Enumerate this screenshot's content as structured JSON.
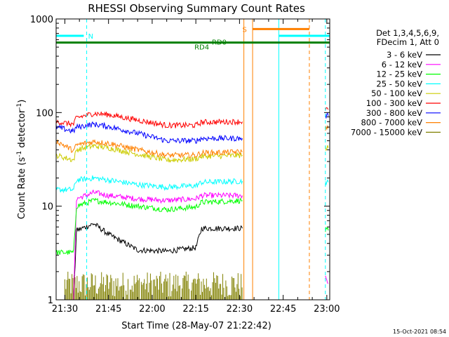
{
  "chart_data": {
    "type": "line",
    "title": "RHESSI Observing Summary Count Rates",
    "xlabel": "Start Time (28-May-07 21:22:42)",
    "ylabel_main": "Count Rate (s",
    "ylabel_sup1": "-1",
    "ylabel_mid": " detector",
    "ylabel_sup2": "-1",
    "ylabel_end": ")",
    "yscale": "log",
    "ylim": [
      1,
      1000
    ],
    "x_unit": "minutes after 21:00",
    "xlim": [
      27,
      121
    ],
    "x_ticks": [
      {
        "x": 30,
        "label": "21:30"
      },
      {
        "x": 45,
        "label": "21:45"
      },
      {
        "x": 60,
        "label": "22:00"
      },
      {
        "x": 75,
        "label": "22:15"
      },
      {
        "x": 90,
        "label": "22:30"
      },
      {
        "x": 105,
        "label": "22:45"
      },
      {
        "x": 120,
        "label": "23:00"
      }
    ],
    "y_ticks": [
      {
        "y": 1,
        "label": "1"
      },
      {
        "y": 10,
        "label": "10"
      },
      {
        "y": 100,
        "label": "100"
      },
      {
        "y": 1000,
        "label": "1000"
      }
    ],
    "legend_header": [
      "Det 1,3,4,5,6,9,",
      "FDecim 1, Att 0"
    ],
    "series": [
      {
        "name": "3 - 6 keV",
        "color": "#000000",
        "segments": [
          [
            [
              31,
              1.0
            ],
            [
              33,
              1.0
            ],
            [
              34,
              5.5
            ],
            [
              40,
              6.5
            ],
            [
              45,
              5.0
            ],
            [
              55,
              3.4
            ],
            [
              65,
              3.3
            ],
            [
              75,
              3.6
            ],
            [
              77,
              5.8
            ],
            [
              91,
              5.8
            ]
          ]
        ]
      },
      {
        "name": "6 - 12 keV",
        "color": "#ff00ff",
        "segments": [
          [
            [
              28,
              1.0
            ],
            [
              33,
              1.0
            ],
            [
              34,
              12
            ],
            [
              40,
              14
            ],
            [
              45,
              13
            ],
            [
              55,
              12
            ],
            [
              65,
              11.5
            ],
            [
              75,
              12
            ],
            [
              77,
              13
            ],
            [
              91,
              13
            ]
          ],
          [
            [
              119.5,
              1.8
            ],
            [
              120.5,
              1.5
            ]
          ]
        ]
      },
      {
        "name": "12 - 25 keV",
        "color": "#00ff00",
        "segments": [
          [
            [
              27,
              3.2
            ],
            [
              33,
              3.2
            ],
            [
              34,
              10
            ],
            [
              40,
              11.5
            ],
            [
              45,
              11
            ],
            [
              55,
              10
            ],
            [
              65,
              9.2
            ],
            [
              75,
              9.8
            ],
            [
              77,
              11
            ],
            [
              91,
              11.5
            ]
          ],
          [
            [
              119.5,
              5.5
            ],
            [
              120.5,
              5.5
            ]
          ]
        ]
      },
      {
        "name": "25 - 50 keV",
        "color": "#00ffff",
        "segments": [
          [
            [
              27,
              15
            ],
            [
              33,
              15
            ],
            [
              34,
              19
            ],
            [
              40,
              20
            ],
            [
              45,
              19
            ],
            [
              55,
              17
            ],
            [
              65,
              16
            ],
            [
              75,
              16.5
            ],
            [
              77,
              18
            ],
            [
              91,
              18.5
            ]
          ],
          [
            [
              119.5,
              18
            ],
            [
              120.5,
              18
            ]
          ]
        ]
      },
      {
        "name": "50 - 100 keV",
        "color": "#cccc00",
        "segments": [
          [
            [
              27,
              35
            ],
            [
              33,
              31
            ],
            [
              34,
              40
            ],
            [
              40,
              44
            ],
            [
              45,
              42
            ],
            [
              55,
              36
            ],
            [
              65,
              31
            ],
            [
              75,
              32
            ],
            [
              77,
              34
            ],
            [
              91,
              35
            ]
          ],
          [
            [
              119.5,
              42
            ],
            [
              120.5,
              42
            ]
          ]
        ]
      },
      {
        "name": "100 - 300 keV",
        "color": "#ff0000",
        "segments": [
          [
            [
              27,
              80
            ],
            [
              33,
              75
            ],
            [
              34,
              88
            ],
            [
              40,
              98
            ],
            [
              45,
              95
            ],
            [
              55,
              83
            ],
            [
              65,
              73
            ],
            [
              75,
              73
            ],
            [
              77,
              79
            ],
            [
              91,
              80
            ]
          ],
          [
            [
              119.5,
              108
            ],
            [
              120.5,
              108
            ]
          ]
        ]
      },
      {
        "name": "300 - 800 keV",
        "color": "#0000ff",
        "segments": [
          [
            [
              27,
              70
            ],
            [
              33,
              63
            ],
            [
              34,
              70
            ],
            [
              40,
              75
            ],
            [
              45,
              71
            ],
            [
              55,
              60
            ],
            [
              65,
              50
            ],
            [
              75,
              50
            ],
            [
              77,
              53
            ],
            [
              91,
              53
            ]
          ],
          [
            [
              119.5,
              92
            ],
            [
              120.5,
              92
            ]
          ]
        ]
      },
      {
        "name": "800 - 7000 keV",
        "color": "#ff8000",
        "segments": [
          [
            [
              27,
              50
            ],
            [
              33,
              39
            ],
            [
              34,
              45
            ],
            [
              40,
              49
            ],
            [
              45,
              47
            ],
            [
              55,
              40
            ],
            [
              65,
              35
            ],
            [
              75,
              35
            ],
            [
              77,
              37
            ],
            [
              91,
              38
            ]
          ],
          [
            [
              119.5,
              68
            ],
            [
              120.5,
              68
            ]
          ]
        ]
      },
      {
        "name": "7000 - 15000 keV",
        "color": "#808000",
        "segments": []
      }
    ],
    "background_noise": {
      "color": "#808000",
      "x_range": [
        30,
        91
      ],
      "y_range": [
        1,
        2
      ]
    },
    "vlines": [
      {
        "x": 27,
        "color": "#00ffff",
        "style": "solid"
      },
      {
        "x": 37.5,
        "color": "#00ffff",
        "style": "dashed"
      },
      {
        "x": 91.5,
        "color": "#ff8000",
        "style": "solid"
      },
      {
        "x": 94.5,
        "color": "#ff8000",
        "style": "solid"
      },
      {
        "x": 103.5,
        "color": "#00ffff",
        "style": "solid"
      },
      {
        "x": 114,
        "color": "#ff8000",
        "style": "dashed"
      },
      {
        "x": 119.5,
        "color": "#00ffff",
        "style": "dashed"
      }
    ],
    "hlines": [
      {
        "x0": 27,
        "x1": 121,
        "y": 560,
        "color": "#008000",
        "width": 3
      },
      {
        "x0": 27,
        "x1": 36.5,
        "y": 660,
        "color": "#00ffff",
        "width": 3
      },
      {
        "x0": 94.5,
        "x1": 114,
        "y": 780,
        "color": "#ff8000",
        "width": 3
      },
      {
        "x0": 103.5,
        "x1": 121,
        "y": 660,
        "color": "#00ffff",
        "width": 3
      }
    ],
    "flags": [
      {
        "label": "N",
        "x": 38,
        "y": 660,
        "color": "#00ffff"
      },
      {
        "label": "S",
        "x": 91,
        "y": 780,
        "color": "#ff8000"
      },
      {
        "label": "RD0",
        "x": 80.5,
        "y": 570,
        "color": "#008000"
      },
      {
        "label": "RD4",
        "x": 74.5,
        "y": 505,
        "color": "#008000"
      }
    ],
    "grid": false,
    "legend_position": "right"
  },
  "timestamp": "15-Oct-2021 08:54"
}
